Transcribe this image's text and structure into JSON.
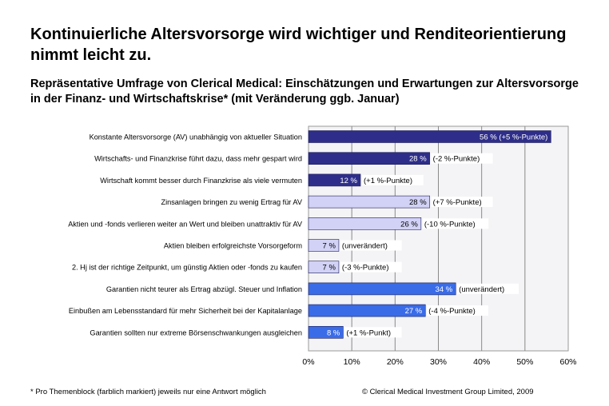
{
  "header": {
    "title": "Kontinuierliche Altersvorsorge wird wichtiger und Renditeorientierung nimmt leicht zu.",
    "subtitle": "Repräsentative Umfrage von Clerical Medical: Einschätzungen und Erwartungen zur Altersvorsorge in der Finanz- und Wirtschaftskrise* (mit Veränderung ggb. Januar)"
  },
  "footer": {
    "note": "* Pro Themenblock (farblich markiert) jeweils nur eine Antwort möglich",
    "copyright": "© Clerical Medical Investment Group Limited, 2009"
  },
  "colors": {
    "group1": "#2e2e8a",
    "group2": "#d2d2f6",
    "group3": "#3a6ce8"
  },
  "chart_data": {
    "type": "bar",
    "orientation": "horizontal",
    "xlim": [
      0,
      60
    ],
    "ticks": [
      "0%",
      "10%",
      "20%",
      "30%",
      "40%",
      "50%",
      "60%"
    ],
    "grid": true,
    "categories": [
      "Konstante Altersvorsorge (AV) unabhängig von aktueller Situation",
      "Wirtschafts- und Finanzkrise führt dazu, dass mehr gespart wird",
      "Wirtschaft kommt besser durch Finanzkrise als viele vermuten",
      "Zinsanlagen bringen zu wenig Ertrag für AV",
      "Aktien und -fonds verlieren weiter an Wert und bleiben unattraktiv für AV",
      "Aktien bleiben erfolgreichste Vorsorgeform",
      "2. Hj ist der richtige Zeitpunkt, um günstig Aktien oder -fonds zu kaufen",
      "Garantien nicht teurer als Ertrag abzügl. Steuer und Inflation",
      "Einbußen am Lebensstandard für mehr Sicherheit bei der Kapitalanlage",
      "Garantien sollten nur extreme Börsenschwankungen ausgleichen"
    ],
    "values": [
      56,
      28,
      12,
      28,
      26,
      7,
      7,
      34,
      27,
      8
    ],
    "groups": [
      1,
      1,
      1,
      2,
      2,
      2,
      2,
      3,
      3,
      3
    ],
    "bar_labels": [
      "56 %",
      "28 %",
      "12 %",
      "28 %",
      "26 %",
      "7 %",
      "7 %",
      "34 %",
      "27 %",
      "8 %"
    ],
    "change_labels": [
      "(+5 %-Punkte)",
      "(-2 %-Punkte)",
      "(+1 %-Punkte)",
      "(+7 %-Punkte)",
      "(-10 %-Punkte)",
      "(unverändert)",
      "(-3 %-Punkte)",
      "(unverändert)",
      "(-4 %-Punkte)",
      "(+1 %-Punkt)"
    ],
    "change_inside": [
      true,
      false,
      false,
      false,
      false,
      false,
      false,
      false,
      false,
      false
    ]
  }
}
